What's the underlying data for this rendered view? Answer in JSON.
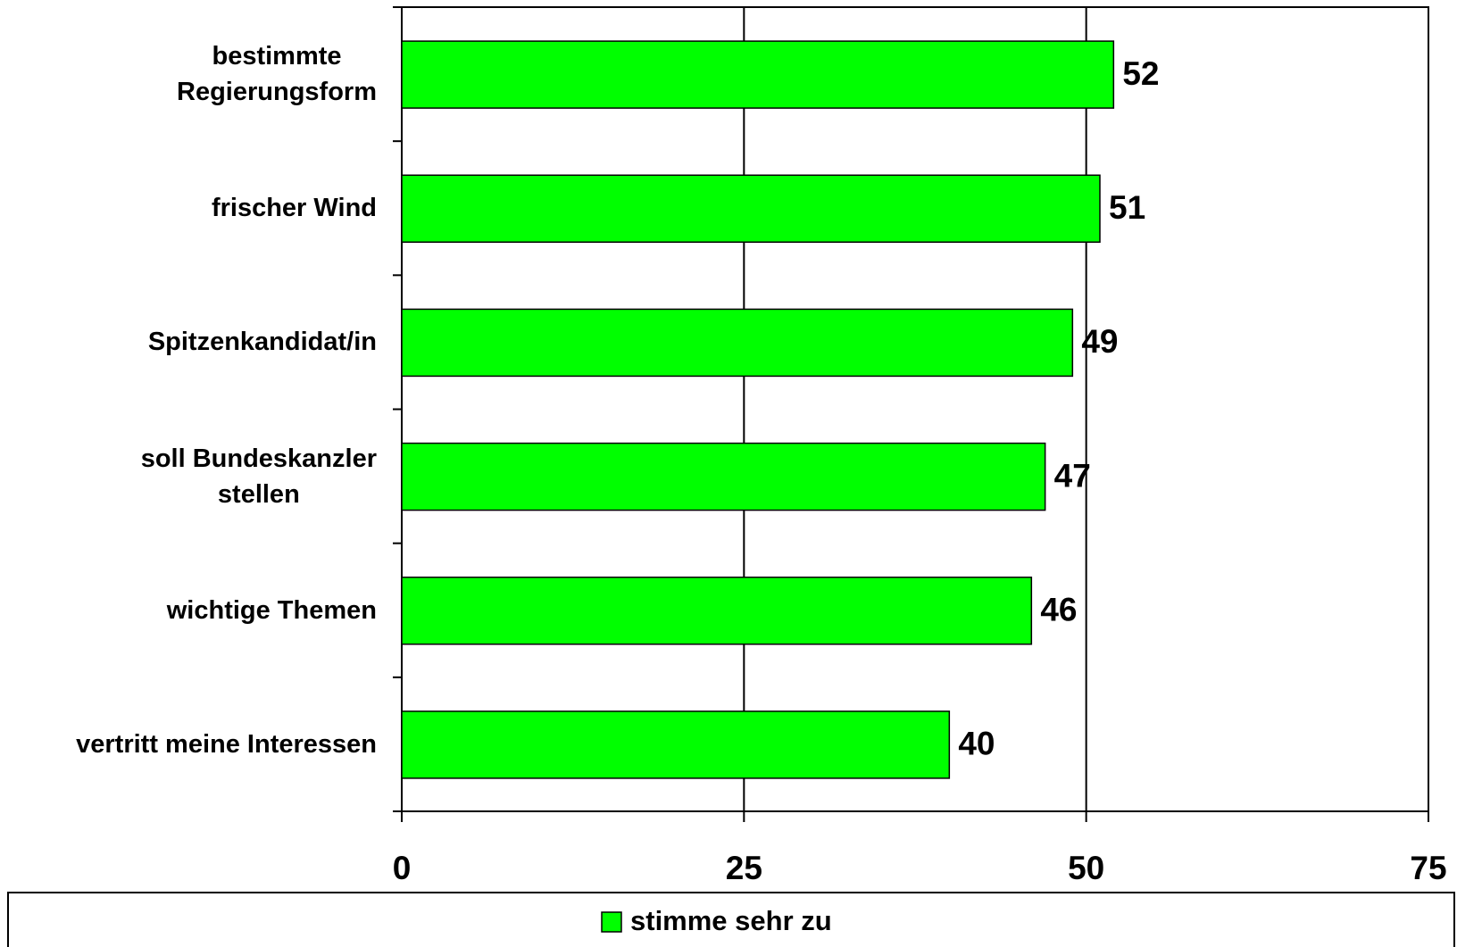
{
  "chart_data": {
    "type": "bar",
    "orientation": "horizontal",
    "categories": [
      "bestimmte\nRegierungsform",
      "frischer Wind",
      "Spitzenkandidat/in",
      "soll Bundeskanzler\nstellen",
      "wichtige Themen",
      "vertritt meine Interessen"
    ],
    "series": [
      {
        "name": "stimme sehr zu",
        "color": "#00ff00",
        "values": [
          52,
          51,
          49,
          47,
          46,
          40
        ]
      }
    ],
    "xlim": [
      0,
      75
    ],
    "xticks": [
      0,
      25,
      50,
      75
    ],
    "grid": true,
    "legend": "bottom"
  }
}
